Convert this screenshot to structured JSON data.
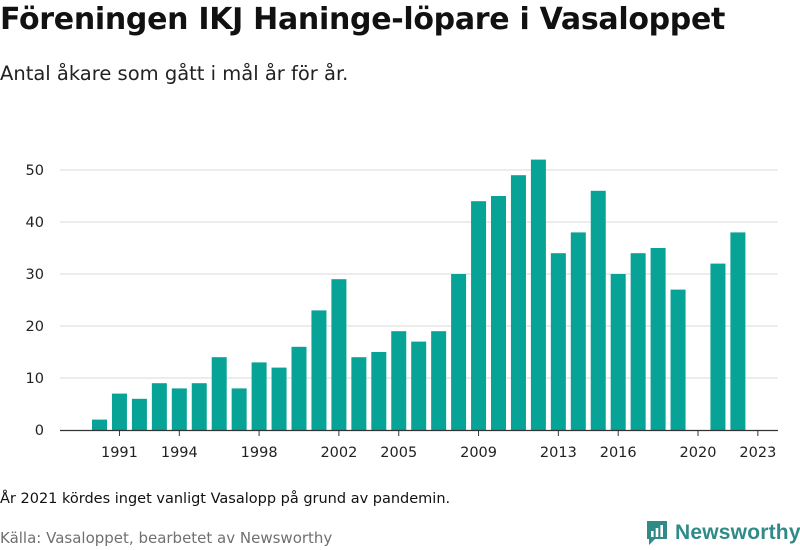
{
  "header": {
    "title": "Föreningen IKJ Haninge-löpare i Vasaloppet",
    "subtitle": "Antal åkare som gått i mål år för år."
  },
  "footer": {
    "note": "År 2021 kördes inget vanligt Vasalopp på grund av pandemin.",
    "source": "Källa: Vasaloppet, bearbetet av Newsworthy",
    "brand": "Newsworthy",
    "brand_icon": "newsworthy-logo-icon"
  },
  "colors": {
    "bar": "#07a396",
    "grid": "#d9d9d9",
    "axis": "#333333",
    "brand": "#2f8a88"
  },
  "chart_data": {
    "type": "bar",
    "title": "Föreningen IKJ Haninge-löpare i Vasaloppet",
    "subtitle": "Antal åkare som gått i mål år för år.",
    "xlabel": "",
    "ylabel": "",
    "grid": true,
    "legend": "none",
    "ylim": [
      0,
      55
    ],
    "yticks": [
      0,
      10,
      20,
      30,
      40,
      50
    ],
    "xtick_labels": [
      "1991",
      "1994",
      "1998",
      "2002",
      "2005",
      "2009",
      "2013",
      "2016",
      "2020",
      "2023"
    ],
    "categories": [
      1990,
      1991,
      1992,
      1993,
      1994,
      1995,
      1996,
      1997,
      1998,
      1999,
      2000,
      2001,
      2002,
      2003,
      2004,
      2005,
      2006,
      2007,
      2008,
      2009,
      2010,
      2011,
      2012,
      2013,
      2014,
      2015,
      2016,
      2017,
      2018,
      2019,
      2020,
      2021,
      2022,
      2023
    ],
    "values": [
      2,
      7,
      6,
      9,
      8,
      9,
      14,
      8,
      13,
      12,
      16,
      23,
      29,
      14,
      15,
      19,
      17,
      19,
      30,
      44,
      45,
      49,
      52,
      34,
      38,
      46,
      30,
      34,
      35,
      27,
      null,
      32,
      38,
      null
    ]
  }
}
